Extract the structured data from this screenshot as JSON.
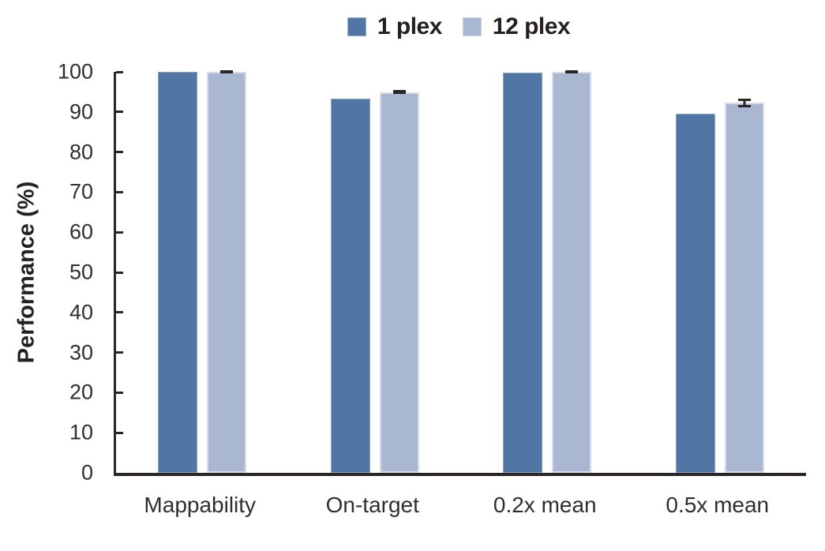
{
  "chart_data": {
    "type": "bar",
    "title": "",
    "categories": [
      "Mappability",
      "On-target",
      "0.2x mean",
      "0.5x mean"
    ],
    "series": [
      {
        "name": "1 plex",
        "color": "#5176a6",
        "values": [
          100.0,
          93.3,
          99.9,
          89.5
        ]
      },
      {
        "name": "12 plex",
        "color": "#aab7d2",
        "values": [
          100.0,
          94.9,
          100.0,
          92.3
        ],
        "error_bars": [
          0.2,
          0.5,
          0.3,
          1.1
        ]
      }
    ],
    "xlabel": "",
    "ylabel": "Performance (%)",
    "ylim": [
      0,
      100
    ],
    "ytick_step": 10,
    "yticks": [
      0,
      10,
      20,
      30,
      40,
      50,
      60,
      70,
      80,
      90,
      100
    ],
    "grid": false,
    "legend_position": "top-center",
    "axis_color": "#2b2523",
    "error_bar_color": "#2b2523",
    "text_color": "#332d2a",
    "background_color": "#ffffff"
  }
}
